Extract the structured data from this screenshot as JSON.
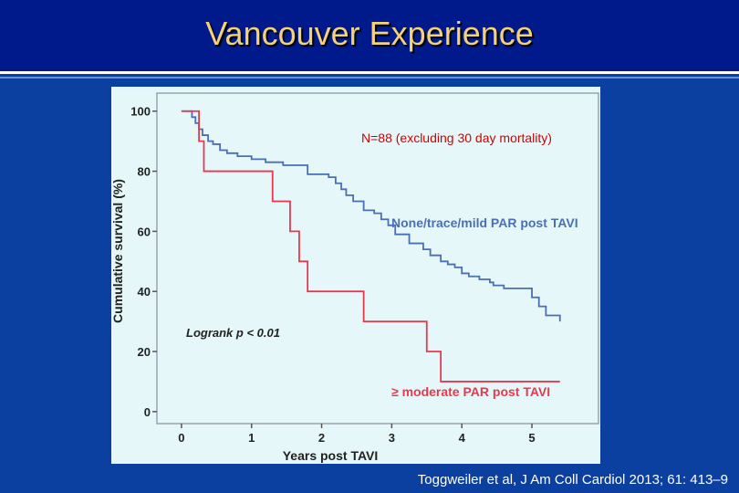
{
  "slide": {
    "title": "Vancouver Experience",
    "citation": "Toggweiler et al, J Am Coll Cardiol 2013; 61: 413–9"
  },
  "chart_data": {
    "type": "line",
    "step": true,
    "xlabel": "Years post TAVI",
    "ylabel": "Cumulative survival (%)",
    "xlim": [
      -0.35,
      5.95
    ],
    "ylim": [
      -4,
      106
    ],
    "x_ticks": [
      "0",
      "1",
      "2",
      "3",
      "4",
      "5"
    ],
    "y_ticks": [
      "0",
      "20",
      "40",
      "60",
      "80",
      "100"
    ],
    "grid": false,
    "annotations": {
      "n_label": "N=88 (excluding 30 day mortality)",
      "logrank": "Logrank p < 0.01"
    },
    "series": [
      {
        "name": "None/trace/mild PAR post TAVI",
        "color": "#4a6fb3",
        "x": [
          0,
          0.15,
          0.2,
          0.25,
          0.3,
          0.38,
          0.45,
          0.55,
          0.65,
          0.8,
          1.0,
          1.2,
          1.45,
          1.8,
          2.1,
          2.2,
          2.28,
          2.35,
          2.45,
          2.6,
          2.75,
          2.85,
          2.95,
          3.05,
          3.25,
          3.45,
          3.55,
          3.7,
          3.8,
          3.9,
          4.0,
          4.1,
          4.25,
          4.4,
          4.45,
          4.6,
          4.85,
          5.0,
          5.1,
          5.2,
          5.4
        ],
        "y": [
          100,
          98,
          96,
          94,
          92,
          90,
          89,
          87,
          86,
          85,
          84,
          83,
          82,
          79,
          78,
          76,
          74,
          72,
          70,
          67,
          66,
          64,
          62,
          59,
          56,
          54,
          52,
          50,
          49,
          48,
          46,
          45,
          44,
          43,
          42,
          41,
          41,
          38,
          35,
          32,
          30
        ]
      },
      {
        "name": "≥ moderate PAR post TAVI",
        "color": "#e8384e",
        "x": [
          0,
          0.25,
          0.32,
          1.3,
          1.55,
          1.68,
          1.8,
          2.6,
          3.5,
          3.7,
          5.4
        ],
        "y": [
          100,
          90,
          80,
          70,
          60,
          50,
          40,
          30,
          20,
          10,
          10
        ]
      }
    ]
  }
}
